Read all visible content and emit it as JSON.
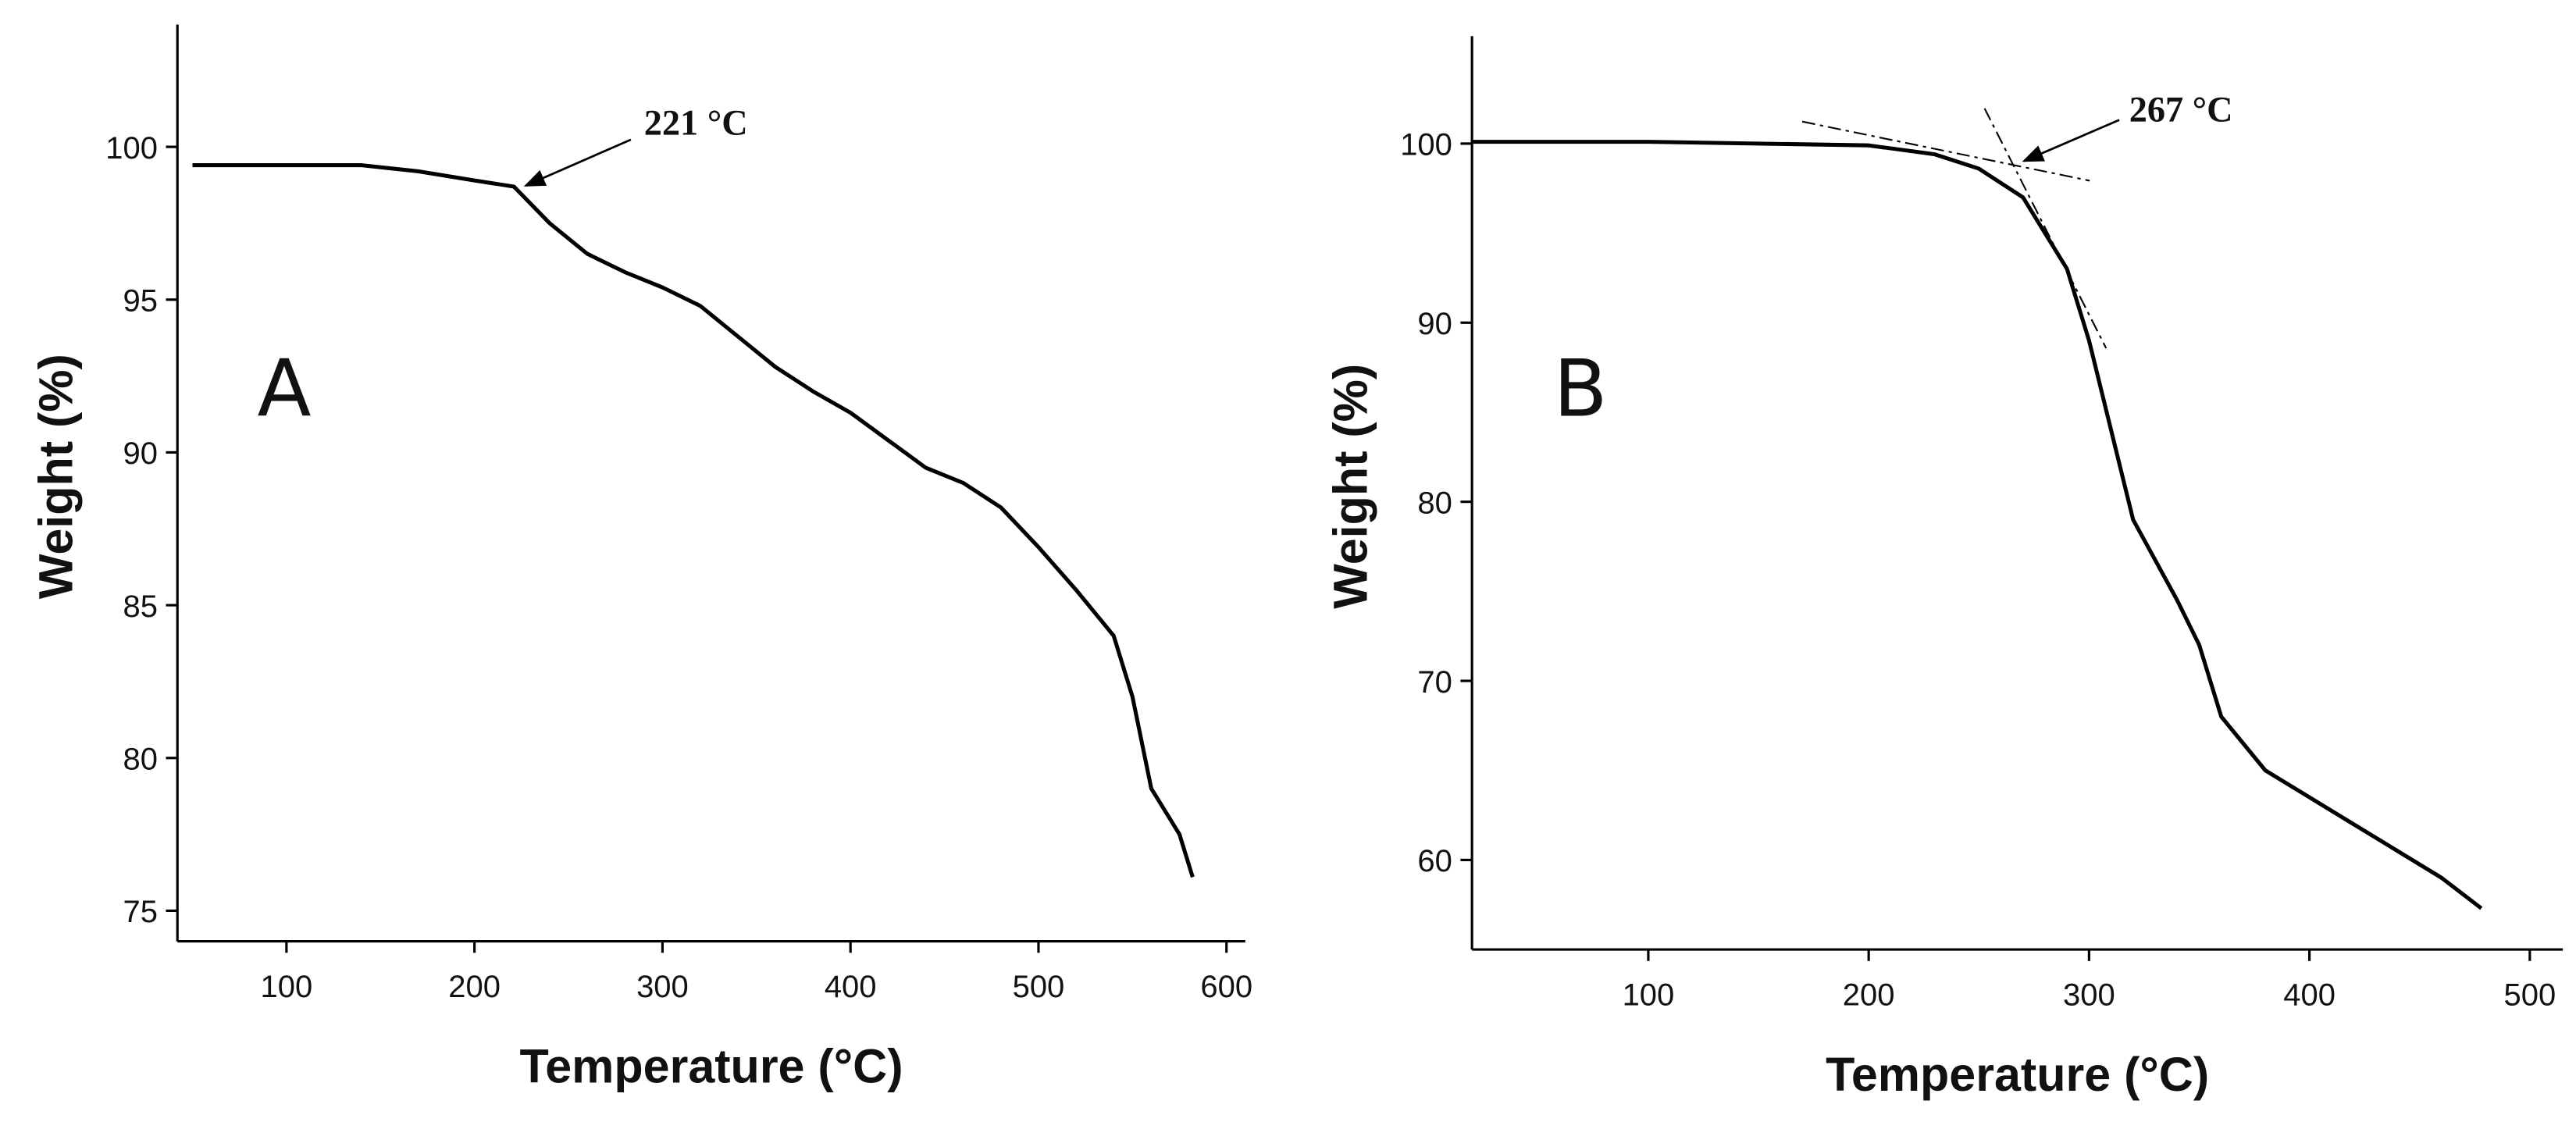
{
  "chart_data": [
    {
      "type": "line",
      "panel": "A",
      "x_label": "Temperature (°C)",
      "y_label": "Weight (%)",
      "annotation": "221 °C",
      "x": [
        50,
        100,
        140,
        170,
        200,
        221,
        240,
        260,
        280,
        300,
        320,
        340,
        360,
        380,
        400,
        420,
        440,
        460,
        480,
        500,
        520,
        540,
        550,
        560,
        575,
        582
      ],
      "series": [
        {
          "color": "#000000",
          "values": [
            99.4,
            99.4,
            99.4,
            99.2,
            98.9,
            98.7,
            97.5,
            96.5,
            95.9,
            95.4,
            94.8,
            93.8,
            92.8,
            92.0,
            91.3,
            90.4,
            89.5,
            89.0,
            88.2,
            86.9,
            85.5,
            84.0,
            82.0,
            79.0,
            77.5,
            76.1
          ]
        }
      ],
      "xlim": [
        42,
        610
      ],
      "ylim": [
        74,
        104
      ],
      "xticks": [
        100,
        200,
        300,
        400,
        500,
        600
      ],
      "yticks": [
        75,
        80,
        85,
        90,
        95,
        100
      ]
    },
    {
      "type": "line",
      "panel": "B",
      "x_label": "Temperature (°C)",
      "y_label": "Weight (%)",
      "annotation": "267 °C",
      "x": [
        20,
        100,
        200,
        230,
        250,
        270,
        290,
        300,
        310,
        320,
        340,
        350,
        360,
        380,
        400,
        420,
        440,
        460,
        478
      ],
      "series": [
        {
          "color": "#000000",
          "values": [
            100.1,
            100.1,
            99.9,
            99.4,
            98.6,
            97.0,
            93.0,
            89.0,
            84.0,
            79.0,
            74.5,
            72.0,
            68.0,
            65.0,
            63.5,
            62.0,
            60.5,
            59.0,
            57.3
          ]
        }
      ],
      "xlim": [
        20,
        515
      ],
      "ylim": [
        55,
        106
      ],
      "xticks": [
        100,
        200,
        300,
        400,
        500
      ],
      "yticks": [
        60,
        70,
        80,
        90,
        100
      ]
    }
  ]
}
